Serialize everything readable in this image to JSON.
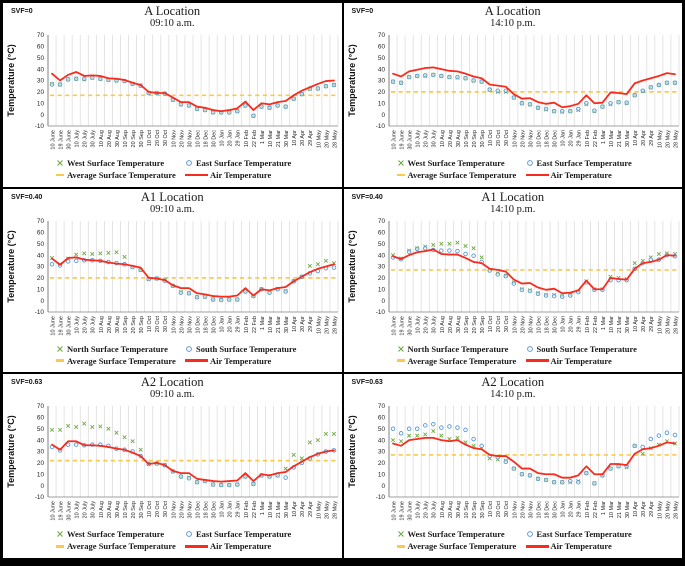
{
  "colors": {
    "air_line": "#f82b1d",
    "x_marker": "#6faa45",
    "o_marker": "#5b9bd5",
    "average_line": "#fdc94d",
    "gridline": "#d9d9d9",
    "axis": "#808080",
    "tick_text": "#1f1f1f"
  },
  "chart_data": [
    {
      "type": "scatter+line",
      "svf": "SVF=0",
      "title": "A Location",
      "subtitle": "09:10 a.m.",
      "ylabel": "Temperature  (°C)",
      "ylim": [
        -10,
        70
      ],
      "yticks": [
        70,
        60,
        50,
        40,
        30,
        20,
        10,
        0,
        -10
      ],
      "grid": "vertical-only",
      "legend_position": "bottom",
      "categories": [
        "10 June",
        "19 June",
        "30 June",
        "10 July",
        "20 July",
        "30 July",
        "10 Aug",
        "20 Aug",
        "30 Aug",
        "10 Sep",
        "20 Sep",
        "30 Sep",
        "10 Oct",
        "20 Oct",
        "30 Oct",
        "10 Nov",
        "20 Nov",
        "30 Nov",
        "10 Dec",
        "18 Dec",
        "30 Dec",
        "10 Jan",
        "20 Jan",
        "29 Jan",
        "10 Feb",
        "22 Feb",
        "1 Mar",
        "10 Mar",
        "21 Mar",
        "30 Mar",
        "10 Apr",
        "20 Apr",
        "29 Apr",
        "10 May",
        "20 May",
        "28 May"
      ],
      "legend": {
        "x_label": "West Surface Temperature",
        "o_label": "East Surface Temperature",
        "avg_label": "Average Surface Temperature",
        "air_label": "Air Temperature"
      },
      "series": {
        "x_values": [
          27,
          26.5,
          31,
          31.5,
          31,
          32.5,
          31.5,
          30.5,
          30,
          29.5,
          27,
          25.5,
          19,
          19,
          18.5,
          13,
          9,
          8,
          5,
          4,
          2,
          2,
          2,
          3,
          8,
          -1,
          7,
          6,
          8,
          7,
          14,
          18,
          22.5,
          23,
          25,
          26
        ],
        "o_values": [
          26.5,
          26.5,
          31,
          31.5,
          31.5,
          32.5,
          31.5,
          30.5,
          30,
          29.5,
          27,
          25.5,
          19,
          19,
          18.5,
          13,
          9,
          8,
          5,
          4,
          2,
          2,
          2,
          3,
          8,
          -1,
          7,
          6,
          8,
          7,
          14,
          18,
          23,
          23,
          25,
          26
        ],
        "average": 17,
        "air_values": [
          36,
          30,
          35,
          37.5,
          34,
          34.5,
          34,
          32,
          31.5,
          30.5,
          28,
          26,
          20,
          19,
          19,
          15,
          11,
          11,
          7,
          6,
          4,
          3,
          4,
          5.5,
          11.5,
          4,
          10,
          9,
          11,
          12,
          17,
          21,
          24,
          27,
          29.5,
          30
        ]
      }
    },
    {
      "type": "scatter+line",
      "svf": "SVF=0",
      "title": "A Location",
      "subtitle": "14:10 p.m.",
      "ylabel": "Temperature  (°C)",
      "ylim": [
        -10,
        70
      ],
      "yticks": [
        70,
        60,
        50,
        40,
        30,
        20,
        10,
        0,
        -10
      ],
      "grid": "vertical-only",
      "legend_position": "bottom",
      "categories": [
        "10 June",
        "19 June",
        "30 June",
        "10 July",
        "20 July",
        "30 July",
        "10 Aug",
        "20 Aug",
        "30 Aug",
        "10 Sep",
        "20 Sep",
        "30 Sep",
        "10 Oct",
        "20 Oct",
        "30 Oct",
        "10 Nov",
        "20 Nov",
        "30 Nov",
        "10 Dec",
        "18 Dec",
        "30 Dec",
        "10 Jan",
        "20 Jan",
        "29 Jan",
        "10 Feb",
        "22 Feb",
        "1 Mar",
        "10 Mar",
        "21 Mar",
        "30 Mar",
        "10 Apr",
        "20 Apr",
        "29 Apr",
        "10 May",
        "20 May",
        "28 May"
      ],
      "legend": {
        "x_label": "West Surface Temperature",
        "o_label": "East Surface Temperature",
        "avg_label": "Average Surface Temperature",
        "air_label": "Air Temperature"
      },
      "series": {
        "x_values": [
          29,
          28,
          33,
          34,
          34,
          35,
          34,
          33,
          32.5,
          32,
          30,
          29,
          22,
          20,
          20,
          15,
          10,
          9,
          6,
          4.5,
          3,
          2.5,
          3,
          4,
          9,
          3,
          7,
          9,
          11,
          10,
          17,
          20.5,
          24,
          26,
          28,
          28
        ],
        "o_values": [
          29,
          28,
          33,
          34,
          34.5,
          35,
          34,
          33,
          33,
          32,
          30,
          29,
          22,
          21,
          21,
          15,
          10,
          9,
          6,
          5,
          3,
          3,
          3,
          5,
          10,
          3.5,
          7,
          10,
          11,
          10.5,
          17,
          21,
          24,
          26,
          28,
          28
        ],
        "average": 20,
        "air_values": [
          36,
          33.5,
          38,
          39.5,
          41,
          41.5,
          40,
          38.5,
          38,
          36,
          33.5,
          32,
          26.5,
          25.5,
          24.5,
          18,
          14,
          14.5,
          11,
          9.5,
          10.5,
          6.5,
          7.5,
          9.5,
          17,
          10,
          10.5,
          19.5,
          19,
          18,
          27.5,
          30,
          32,
          34,
          36.5,
          35.5
        ]
      }
    },
    {
      "type": "scatter+line",
      "svf": "SVF=0.40",
      "title": "A1 Location",
      "subtitle": "09:10 a.m.",
      "ylabel": "Temperature  (°C)",
      "ylim": [
        -10,
        70
      ],
      "yticks": [
        70,
        60,
        50,
        40,
        30,
        20,
        10,
        0,
        -10
      ],
      "grid": "vertical-only",
      "legend_position": "bottom",
      "categories": [
        "10 June",
        "19 June",
        "30 June",
        "10 July",
        "20 July",
        "30 July",
        "10 Aug",
        "20 Aug",
        "30 Aug",
        "10 Sep",
        "20 Sep",
        "30 Sep",
        "10 Oct",
        "20 Oct",
        "30 Oct",
        "10 Nov",
        "20 Nov",
        "30 Nov",
        "10 Dec",
        "18 Dec",
        "30 Dec",
        "10 Jan",
        "20 Jan",
        "29 Jan",
        "10 Feb",
        "22 Feb",
        "1 Mar",
        "10 Mar",
        "21 Mar",
        "30 Mar",
        "10 Apr",
        "20 Apr",
        "29 Apr",
        "10 May",
        "20 May",
        "28 May"
      ],
      "legend": {
        "x_label": "North Surface Temperature",
        "o_label": "South Surface Temperature",
        "avg_label": "Average Surface Temperature",
        "air_label": "Air Temperature"
      },
      "series": {
        "x_values": [
          37.5,
          32,
          37,
          40.5,
          41.5,
          41,
          41.5,
          42,
          42.5,
          38.5,
          29.5,
          27,
          19,
          19.5,
          18,
          13,
          7.5,
          6.5,
          3,
          3.5,
          1,
          1,
          1,
          1,
          8,
          4,
          10,
          7.5,
          10.5,
          8.5,
          17,
          21,
          30.5,
          32,
          35,
          33
        ],
        "o_values": [
          32,
          31,
          34.5,
          35,
          35.5,
          35.5,
          35,
          34,
          33,
          32,
          29.5,
          27,
          19,
          19.5,
          17.5,
          13,
          7,
          6.5,
          3,
          3.5,
          1,
          0.5,
          1,
          1,
          8,
          4,
          10,
          7,
          10,
          8,
          17,
          21,
          24,
          26,
          28.5,
          29
        ],
        "average": 20,
        "air_values": [
          37,
          31.5,
          37.5,
          38,
          36,
          35.5,
          35,
          33.5,
          32.5,
          32,
          30.5,
          29,
          20,
          19.5,
          18,
          13.5,
          11,
          11,
          6.5,
          5.5,
          4,
          3.5,
          3.5,
          4.5,
          11,
          4.5,
          10,
          9,
          11,
          12,
          17,
          21,
          25,
          28,
          30,
          32
        ]
      }
    },
    {
      "type": "scatter+line",
      "svf": "SVF=0.40",
      "title": "A1 Location",
      "subtitle": "14:10 p.m.",
      "ylabel": "Temperature  (°C)",
      "ylim": [
        -10,
        70
      ],
      "yticks": [
        70,
        60,
        50,
        40,
        30,
        20,
        10,
        0,
        -10
      ],
      "grid": "vertical-only",
      "legend_position": "bottom",
      "categories": [
        "10 June",
        "19 June",
        "30 June",
        "10 July",
        "20 July",
        "30 July",
        "10 Aug",
        "20 Aug",
        "30 Aug",
        "10 Sep",
        "20 Sep",
        "30 Sep",
        "10 Oct",
        "20 Oct",
        "30 Oct",
        "10 Nov",
        "20 Nov",
        "30 Nov",
        "10 Dec",
        "18 Dec",
        "30 Dec",
        "10 Jan",
        "20 Jan",
        "29 Jan",
        "10 Feb",
        "22 Feb",
        "1 Mar",
        "10 Mar",
        "21 Mar",
        "30 Mar",
        "10 Apr",
        "20 Apr",
        "29 Apr",
        "10 May",
        "20 May",
        "28 May"
      ],
      "legend": {
        "x_label": "North Surface Temperature",
        "o_label": "South Surface Temperature",
        "avg_label": "Average Surface Temperature",
        "air_label": "Air Temperature"
      },
      "series": {
        "x_values": [
          40,
          37,
          44,
          46,
          47.5,
          49,
          50,
          50,
          51,
          48,
          46,
          38,
          27,
          24,
          22,
          16,
          10,
          9,
          6.5,
          5,
          5,
          4,
          5,
          8,
          17,
          10,
          10,
          21,
          20,
          19,
          33,
          35,
          38,
          41,
          41.5,
          41
        ],
        "o_values": [
          38,
          36.5,
          43,
          45.5,
          46,
          44.5,
          44,
          44,
          43.5,
          41,
          39.5,
          34,
          26.5,
          23,
          21.5,
          15,
          9.5,
          8.5,
          6,
          4.5,
          4,
          3.5,
          4.5,
          7.5,
          16,
          9.5,
          9.5,
          18,
          18,
          18,
          28,
          33,
          36,
          36,
          40,
          39
        ],
        "average": 27,
        "air_values": [
          39,
          36.5,
          40,
          42.5,
          43.5,
          45,
          41,
          40.5,
          40.5,
          37.5,
          34,
          33,
          28,
          27,
          25.5,
          18.5,
          15,
          15.5,
          11.5,
          9.5,
          10.5,
          6.5,
          7,
          9,
          17.5,
          10,
          10,
          20,
          19,
          18.5,
          28,
          33,
          34,
          36,
          40,
          39.5
        ]
      }
    },
    {
      "type": "scatter+line",
      "svf": "SVF=0.63",
      "title": "A2 Location",
      "subtitle": "09:10 a.m.",
      "ylabel": "Temperature  (°C)",
      "ylim": [
        -10,
        70
      ],
      "yticks": [
        70,
        60,
        50,
        40,
        30,
        20,
        10,
        0,
        -10
      ],
      "grid": "vertical-only",
      "legend_position": "bottom",
      "categories": [
        "10 June",
        "19 June",
        "30 June",
        "10 July",
        "20 July",
        "30 July",
        "10 Aug",
        "20 Aug",
        "30 Aug",
        "10 Sep",
        "20 Sep",
        "30 Sep",
        "10 Oct",
        "20 Oct",
        "30 Oct",
        "10 Nov",
        "20 Nov",
        "30 Nov",
        "10 Dec",
        "18 Dec",
        "30 Dec",
        "10 Jan",
        "20 Jan",
        "29 Jan",
        "10 Feb",
        "22 Feb",
        "1 Mar",
        "10 Mar",
        "21 Mar",
        "30 Mar",
        "10 Apr",
        "20 Apr",
        "29 Apr",
        "10 May",
        "20 May",
        "28 May"
      ],
      "legend": {
        "x_label": "West Surface Temperature",
        "o_label": "East Surface Temperature",
        "avg_label": "Average Surface Temperature",
        "air_label": "Air Temperature"
      },
      "series": {
        "x_values": [
          49,
          49,
          52.5,
          51.5,
          54.5,
          51.5,
          52,
          50,
          46.5,
          42.5,
          39,
          31.5,
          19,
          19.5,
          18,
          12.5,
          8,
          7,
          3,
          4,
          1,
          0.5,
          0.5,
          1,
          8,
          1.5,
          9,
          8,
          9,
          15,
          27,
          24,
          38,
          40,
          45.5,
          45.5
        ],
        "o_values": [
          34,
          31,
          36,
          36,
          35.5,
          36,
          36,
          35,
          32.5,
          31.5,
          30,
          26,
          19,
          19.5,
          18,
          12.5,
          8,
          6.5,
          3,
          4,
          1,
          0.5,
          0.5,
          1,
          8,
          1.5,
          9,
          8,
          9,
          7,
          16,
          20,
          24,
          27.5,
          30,
          31
        ],
        "average": 22,
        "air_values": [
          36,
          31.5,
          39,
          39,
          35.5,
          35.5,
          35,
          34,
          32.5,
          31.5,
          29,
          26,
          19,
          20,
          18,
          13,
          11,
          11,
          6,
          5,
          4,
          3.5,
          4,
          4.5,
          11,
          4,
          10,
          9,
          11,
          12,
          17,
          21,
          25,
          28,
          30,
          31
        ]
      }
    },
    {
      "type": "scatter+line",
      "svf": "SVF=0.63",
      "title": "A2 Location",
      "subtitle": "14:10 p.m.",
      "ylabel": "Temperature  (°C)",
      "ylim": [
        -10,
        70
      ],
      "yticks": [
        70,
        60,
        50,
        40,
        30,
        20,
        10,
        0,
        -10
      ],
      "grid": "vertical-only",
      "legend_position": "bottom",
      "categories": [
        "10 June",
        "19 June",
        "30 June",
        "10 July",
        "20 July",
        "30 July",
        "10 Aug",
        "20 Aug",
        "30 Aug",
        "10 Sep",
        "20 Sep",
        "30 Sep",
        "10 Oct",
        "20 Oct",
        "30 Oct",
        "10 Nov",
        "20 Nov",
        "30 Nov",
        "10 Dec",
        "18 Dec",
        "30 Dec",
        "10 Jan",
        "20 Jan",
        "29 Jan",
        "10 Feb",
        "22 Feb",
        "1 Mar",
        "10 Mar",
        "21 Mar",
        "30 Mar",
        "10 Apr",
        "20 Apr",
        "29 Apr",
        "10 May",
        "20 May",
        "28 May"
      ],
      "legend": {
        "x_label": "West Surface Temperature",
        "o_label": "East Surface Temperature",
        "avg_label": "Average Surface Temperature",
        "air_label": "Air Temperature"
      },
      "series": {
        "x_values": [
          40,
          39,
          44,
          44,
          45,
          48,
          44,
          41,
          42,
          38,
          35,
          33,
          24,
          23,
          22,
          15,
          10,
          9,
          6,
          5,
          3,
          3,
          3,
          4,
          11,
          2,
          9,
          15,
          17,
          16,
          35,
          28,
          33,
          36,
          39,
          37
        ],
        "o_values": [
          50,
          46,
          50,
          50,
          53,
          54,
          51,
          52,
          51,
          49,
          41,
          35,
          26,
          25,
          21,
          15,
          10,
          9,
          6,
          5,
          3,
          3,
          4,
          3,
          11,
          2,
          9,
          15,
          17,
          17,
          35,
          34,
          41,
          44,
          46.5,
          44.5
        ],
        "average": 27,
        "air_values": [
          37,
          35,
          40,
          41,
          42,
          42,
          40,
          39,
          40,
          36,
          33,
          32,
          27,
          26,
          26,
          21,
          15,
          15,
          11,
          10,
          10,
          7,
          7,
          9,
          17,
          10,
          10,
          19,
          19,
          18,
          28,
          32,
          33,
          35,
          38,
          37
        ]
      }
    }
  ]
}
